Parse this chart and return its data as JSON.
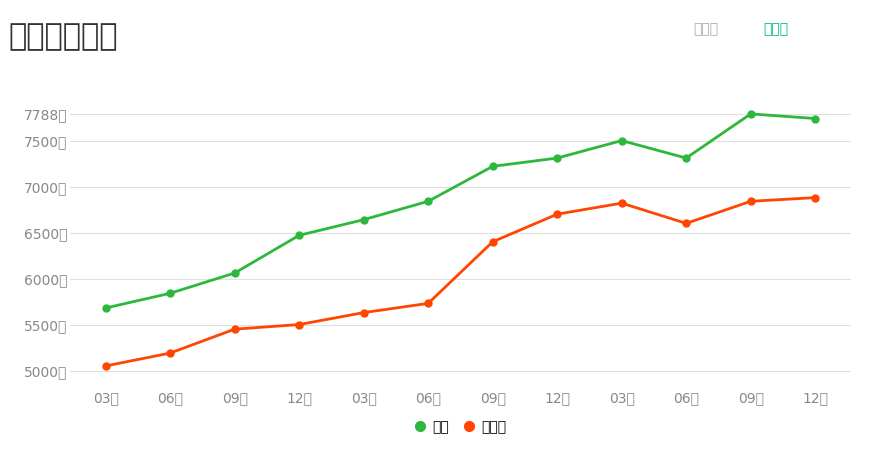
{
  "title": "银川房价走势",
  "title_fontsize": 22,
  "title_color": "#333333",
  "background_color": "#ffffff",
  "top_right_label1": "近一年",
  "top_right_label2": "近三年",
  "top_right_color1": "#aaaaaa",
  "top_right_color2": "#00b87a",
  "x_labels": [
    "03月",
    "06月",
    "09月",
    "12月",
    "03月",
    "06月",
    "09月",
    "12月",
    "03月",
    "06月",
    "09月",
    "12月"
  ],
  "new_house": [
    5680,
    5840,
    6060,
    6470,
    6640,
    6840,
    7220,
    7310,
    7500,
    7310,
    7790,
    7740
  ],
  "second_house": [
    5050,
    5190,
    5450,
    5500,
    5630,
    5730,
    6400,
    6700,
    6820,
    6600,
    6840,
    6880
  ],
  "new_house_color": "#2db83d",
  "second_house_color": "#ff4500",
  "new_house_label": "新房",
  "second_house_label": "二手房",
  "yticks": [
    5000,
    5500,
    6000,
    6500,
    7000,
    7500,
    7788
  ],
  "ytick_labels": [
    "5000元",
    "5500元",
    "6000元",
    "6500元",
    "7000元",
    "7500元",
    "7788元"
  ],
  "ymin": 4870,
  "ymax": 8050,
  "grid_color": "#e0e0e0",
  "marker_size": 5,
  "line_width": 2
}
